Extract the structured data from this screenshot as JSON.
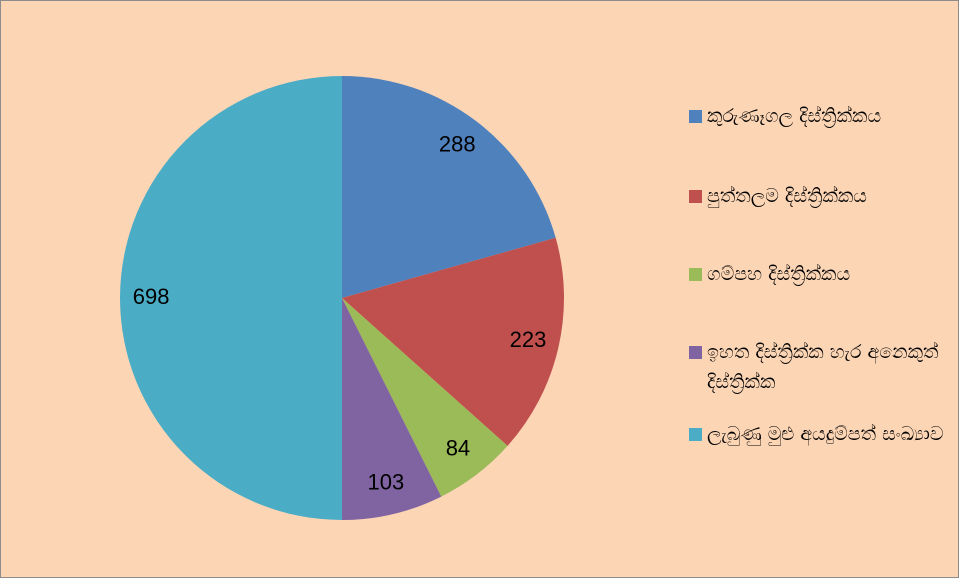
{
  "chart_data": {
    "type": "pie",
    "categories": [
      "කුරුණෑගල දිස්ත්‍රික්කය",
      "පුත්තලම දිස්ත්‍රික්කය",
      "ගම්පහ දිස්ත්‍රික්කය",
      "ඉහත දිස්ත්‍රික්ක හැර අනෙකුත් දිස්ත්‍රික්ක",
      "ලැබුණු මුළු අයදුම්පත් සංඛ්‍යාව"
    ],
    "values": [
      288,
      223,
      84,
      103,
      698
    ],
    "colors": [
      "#4f81bd",
      "#c0504d",
      "#9bbb59",
      "#8064a2",
      "#4bacc6"
    ],
    "legend": "right"
  }
}
